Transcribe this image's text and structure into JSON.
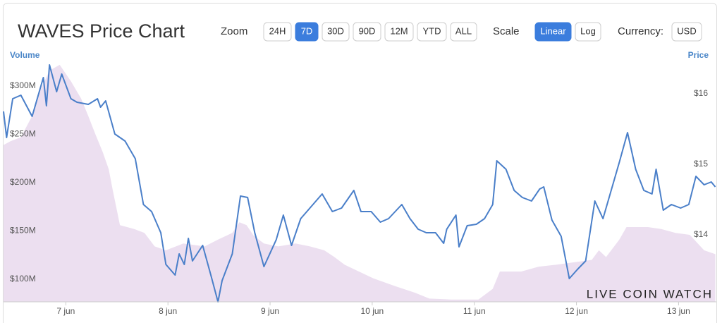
{
  "toolbar": {
    "zoom_label": "Zoom",
    "zoom_options": [
      "24H",
      "7D",
      "30D",
      "90D",
      "12M",
      "YTD",
      "ALL"
    ],
    "zoom_selected": 1,
    "scale_label": "Scale",
    "scale_options": [
      "Linear",
      "Log"
    ],
    "scale_selected": 0,
    "currency_label": "Currency:",
    "currency": "USD",
    "watermark": "LIVE COIN WATCH"
  },
  "chart_data": {
    "type": "line",
    "title": "WAVES Price Chart",
    "log_scale": false,
    "grid": false,
    "xlim": [
      6.39,
      13.37
    ],
    "xticks": [
      {
        "value": 7,
        "label": "7 jun"
      },
      {
        "value": 8,
        "label": "8 jun"
      },
      {
        "value": 9,
        "label": "9 jun"
      },
      {
        "value": 10,
        "label": "10 jun"
      },
      {
        "value": 11,
        "label": "11 jun"
      },
      {
        "value": 12,
        "label": "12 jun"
      },
      {
        "value": 13,
        "label": "13 jun"
      }
    ],
    "ylim": [
      76600000,
      323400000
    ],
    "yticks": [
      {
        "value": 100000000,
        "label": "$100M"
      },
      {
        "value": 150000000,
        "label": "$150M"
      },
      {
        "value": 200000000,
        "label": "$200M"
      },
      {
        "value": 250000000,
        "label": "$250M"
      },
      {
        "value": 300000000,
        "label": "$300M"
      }
    ],
    "y2lim": [
      13.05,
      16.43
    ],
    "y2ticks": [
      {
        "value": 14,
        "label": "$14"
      },
      {
        "value": 15,
        "label": "$15"
      },
      {
        "value": 16,
        "label": "$16"
      }
    ],
    "series": [
      {
        "name": "Volume",
        "type": "area",
        "axis": "y",
        "color": "#ecdff0",
        "label_color": "#4a86c8",
        "x": [
          6.39,
          6.46,
          6.56,
          6.67,
          6.73,
          6.84,
          6.94,
          7.05,
          7.15,
          7.22,
          7.29,
          7.36,
          7.42,
          7.46,
          7.53,
          7.67,
          7.77,
          7.87,
          7.98,
          8.15,
          8.36,
          8.49,
          8.63,
          8.7,
          8.77,
          8.84,
          8.94,
          9.08,
          9.25,
          9.39,
          9.53,
          9.63,
          9.73,
          9.87,
          10.01,
          10.22,
          10.42,
          10.56,
          10.77,
          11.04,
          11.18,
          11.25,
          11.46,
          11.63,
          11.8,
          11.94,
          12.15,
          12.22,
          12.29,
          12.42,
          12.49,
          12.7,
          12.83,
          12.97,
          13.11,
          13.25,
          13.36
        ],
        "values": [
          239000000,
          243000000,
          247000000,
          269000000,
          291000000,
          316000000,
          322000000,
          305000000,
          287000000,
          269000000,
          250000000,
          232000000,
          214000000,
          192000000,
          156000000,
          152000000,
          148000000,
          134000000,
          130000000,
          137000000,
          134000000,
          141000000,
          148000000,
          159000000,
          156000000,
          145000000,
          137000000,
          134000000,
          137000000,
          134000000,
          130000000,
          123000000,
          115000000,
          108000000,
          101000000,
          93000000,
          86000000,
          80000000,
          79000000,
          79000000,
          90000000,
          108000000,
          108000000,
          113000000,
          115000000,
          117000000,
          120000000,
          130000000,
          123000000,
          141000000,
          154000000,
          154000000,
          152000000,
          148000000,
          146000000,
          130000000,
          126000000
        ]
      },
      {
        "name": "Price",
        "type": "line",
        "axis": "y2",
        "color": "#4a7fc9",
        "label_color": "#4a86c8",
        "x": [
          6.39,
          6.42,
          6.48,
          6.56,
          6.67,
          6.76,
          6.78,
          6.81,
          6.84,
          6.91,
          6.96,
          7.05,
          7.11,
          7.22,
          7.31,
          7.34,
          7.39,
          7.48,
          7.58,
          7.68,
          7.76,
          7.84,
          7.93,
          7.98,
          8.07,
          8.11,
          8.16,
          8.2,
          8.24,
          8.34,
          8.42,
          8.49,
          8.53,
          8.63,
          8.71,
          8.78,
          8.85,
          8.94,
          9.06,
          9.13,
          9.21,
          9.3,
          9.39,
          9.51,
          9.61,
          9.7,
          9.82,
          9.89,
          9.99,
          10.08,
          10.16,
          10.29,
          10.37,
          10.45,
          10.53,
          10.62,
          10.7,
          10.73,
          10.82,
          10.85,
          10.93,
          11.02,
          11.1,
          11.18,
          11.22,
          11.31,
          11.39,
          11.47,
          11.56,
          11.64,
          11.68,
          11.76,
          11.85,
          11.93,
          12.01,
          12.09,
          12.18,
          12.26,
          12.34,
          12.42,
          12.5,
          12.58,
          12.66,
          12.74,
          12.78,
          12.85,
          12.93,
          13.02,
          13.1,
          13.17,
          13.25,
          13.32,
          13.36
        ],
        "values": [
          15.75,
          15.38,
          15.93,
          15.98,
          15.68,
          16.13,
          16.23,
          15.83,
          16.41,
          16.03,
          16.28,
          15.93,
          15.88,
          15.85,
          15.93,
          15.81,
          15.9,
          15.43,
          15.33,
          15.08,
          14.43,
          14.33,
          14.03,
          13.58,
          13.43,
          13.73,
          13.58,
          13.95,
          13.63,
          13.85,
          13.43,
          13.05,
          13.35,
          13.73,
          14.55,
          14.53,
          14.03,
          13.55,
          13.93,
          14.28,
          13.85,
          14.23,
          14.38,
          14.58,
          14.33,
          14.38,
          14.63,
          14.33,
          14.33,
          14.18,
          14.23,
          14.43,
          14.23,
          14.08,
          14.03,
          14.03,
          13.88,
          14.08,
          14.28,
          13.83,
          14.13,
          14.15,
          14.23,
          14.43,
          15.05,
          14.93,
          14.63,
          14.53,
          14.48,
          14.65,
          14.68,
          14.21,
          13.98,
          13.38,
          13.51,
          13.63,
          14.48,
          14.23,
          14.63,
          15.03,
          15.45,
          14.93,
          14.63,
          14.58,
          14.93,
          14.35,
          14.43,
          14.38,
          14.43,
          14.83,
          14.71,
          14.75,
          14.68
        ]
      }
    ]
  }
}
